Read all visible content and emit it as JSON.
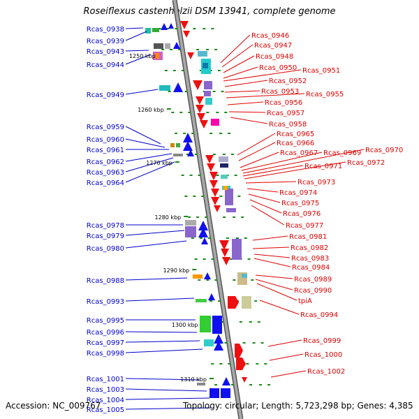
{
  "title": "Roseiflexus castenholzii DSM 13941, complete genome",
  "footer": {
    "accession": "Accession: NC_009767",
    "topology": "Topology: circular; Length: 5,723,298 bp; Genes: 4,385"
  },
  "colors": {
    "backbone": "#8c8c8c",
    "tick": "#1a8a1a",
    "left_label": "#0000cc",
    "right_label": "#e00000",
    "gene_blue": "#1010ee",
    "gene_red": "#ee1010"
  },
  "scale_labels": [
    "1250 kbp",
    "1260 kbp",
    "1270 kbp",
    "1280 kbp",
    "1290 kbp",
    "1300 kbp",
    "1310 kbp"
  ],
  "left_labels": [
    "Rcas_0938",
    "Rcas_0939",
    "Rcas_0943",
    "Rcas_0944",
    "Rcas_0949",
    "Rcas_0959",
    "Rcas_0960",
    "Rcas_0961",
    "Rcas_0962",
    "Rcas_0963",
    "Rcas_0964",
    "Rcas_0978",
    "Rcas_0979",
    "Rcas_0980",
    "Rcas_0988",
    "Rcas_0993",
    "Rcas_0995",
    "Rcas_0996",
    "Rcas_0997",
    "Rcas_0998",
    "Rcas_1001",
    "Rcas_1003",
    "Rcas_1004",
    "Rcas_1005"
  ],
  "right_labels": [
    "Rcas_0946",
    "Rcas_0947",
    "Rcas_0948",
    "Rcas_0950",
    "Rcas_0951",
    "Rcas_0952",
    "Rcas_0953",
    "Rcas_0955",
    "Rcas_0956",
    "Rcas_0957",
    "Rcas_0958",
    "Rcas_0965",
    "Rcas_0966",
    "Rcas_0967",
    "Rcas_0969",
    "Rcas_0970",
    "Rcas_0971",
    "Rcas_0972",
    "Rcas_0973",
    "Rcas_0974",
    "Rcas_0975",
    "Rcas_0976",
    "Rcas_0977",
    "Rcas_0981",
    "Rcas_0982",
    "Rcas_0983",
    "Rcas_0984",
    "Rcas_0989",
    "Rcas_0990",
    "tpiA",
    "Rcas_0994",
    "Rcas_0999",
    "Rcas_1000",
    "Rcas_1002"
  ]
}
